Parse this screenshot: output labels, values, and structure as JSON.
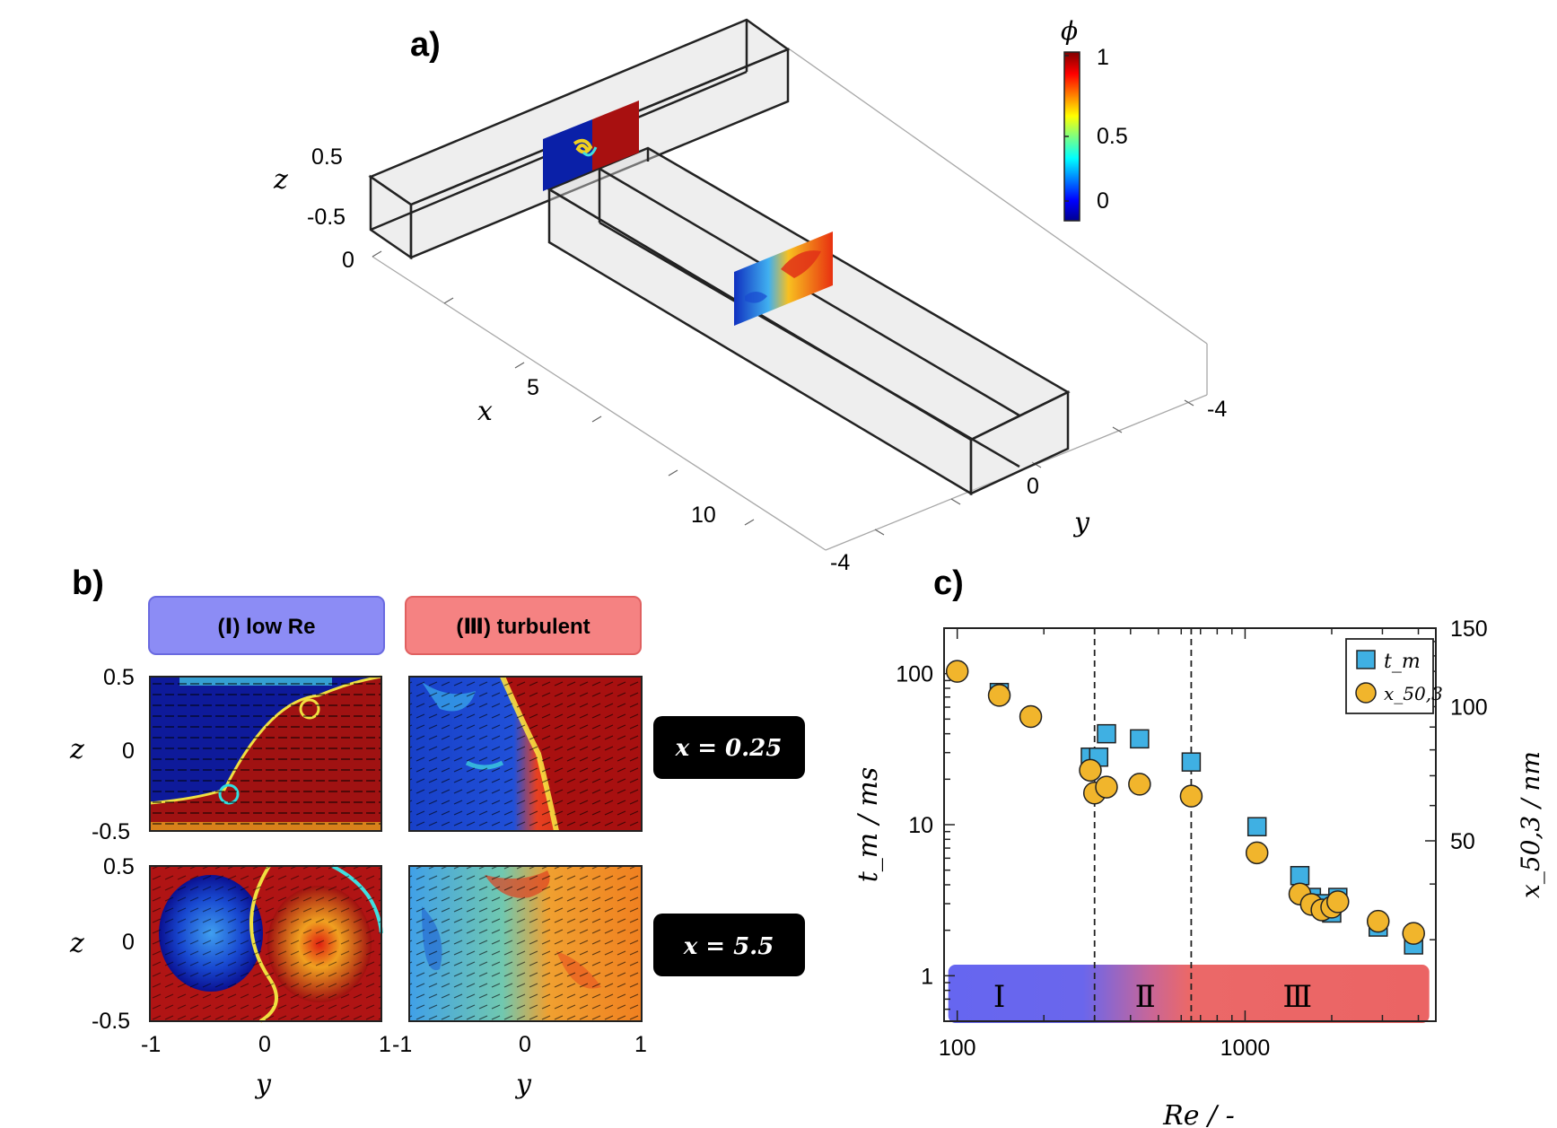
{
  "panel_a": {
    "label": "a)",
    "z_label": "z",
    "z_ticks": [
      "0.5",
      "-0.5",
      "0"
    ],
    "x_label": "x",
    "x_ticks": [
      "5",
      "10"
    ],
    "y_label": "y",
    "y_ticks": [
      "-4",
      "0",
      "-4"
    ],
    "colorbar_label": "ϕ",
    "colorbar_ticks": [
      "1",
      "0.5",
      "0"
    ]
  },
  "panel_b": {
    "label": "b)",
    "regime_low": "(Ⅰ) low Re",
    "regime_turb": "(Ⅲ) turbulent",
    "pos_top": "x = 0.25",
    "pos_bottom": "x = 5.5",
    "z_label": "z",
    "y_label": "y",
    "z_ticks": [
      "0.5",
      "0",
      "-0.5"
    ],
    "y_ticks_left": [
      "-1",
      "0",
      "1"
    ],
    "y_ticks_right": [
      "-1",
      "0",
      "1"
    ]
  },
  "panel_c": {
    "label": "c)"
  },
  "chart_data": {
    "type": "scatter",
    "xlabel": "Re / -",
    "ylabel": "t_m / ms",
    "ylabel2": "x_50,3 / nm",
    "xscale": "log",
    "yscale": "log",
    "xlim": [
      90,
      4600
    ],
    "ylim": [
      0.5,
      200
    ],
    "ylim2": [
      20,
      150
    ],
    "x_ticks": [
      "100",
      "1000"
    ],
    "y_ticks": [
      "1",
      "10",
      "100"
    ],
    "y2_ticks": [
      "50",
      "100",
      "150"
    ],
    "regimes": [
      {
        "label": "Ⅰ",
        "from": 100,
        "to": 300
      },
      {
        "label": "Ⅱ",
        "from": 300,
        "to": 650
      },
      {
        "label": "Ⅲ",
        "from": 650,
        "to": 4500
      }
    ],
    "regime_boundaries": [
      300,
      650
    ],
    "legend_position": "top-right",
    "series": [
      {
        "name": "t_m",
        "marker": "square",
        "color": "#3FB0E3",
        "axis": "left",
        "x": [
          140,
          290,
          310,
          330,
          430,
          650,
          1100,
          1550,
          1700,
          1850,
          2000,
          2100,
          2900,
          3850
        ],
        "y": [
          75,
          28,
          28,
          40,
          37,
          26,
          9.7,
          4.6,
          3.3,
          3.0,
          2.6,
          3.3,
          2.1,
          1.6
        ]
      },
      {
        "name": "x_50,3",
        "marker": "circle",
        "color": "#F1B52C",
        "axis": "right",
        "x": [
          100,
          140,
          180,
          290,
          300,
          330,
          430,
          650,
          1100,
          1550,
          1700,
          1850,
          2000,
          2100,
          2900,
          3850
        ],
        "y": [
          120,
          106,
          95,
          72,
          64,
          66,
          67,
          63,
          47,
          38,
          36,
          35,
          35.5,
          36.5,
          33,
          31
        ]
      }
    ]
  },
  "colors": {
    "regime_I": "#6464F0",
    "regime_III": "#EB6464",
    "pill_low": "#8C8CF5",
    "pill_turb": "#F58282",
    "square": "#3FB0E3",
    "circle": "#F1B52C"
  }
}
